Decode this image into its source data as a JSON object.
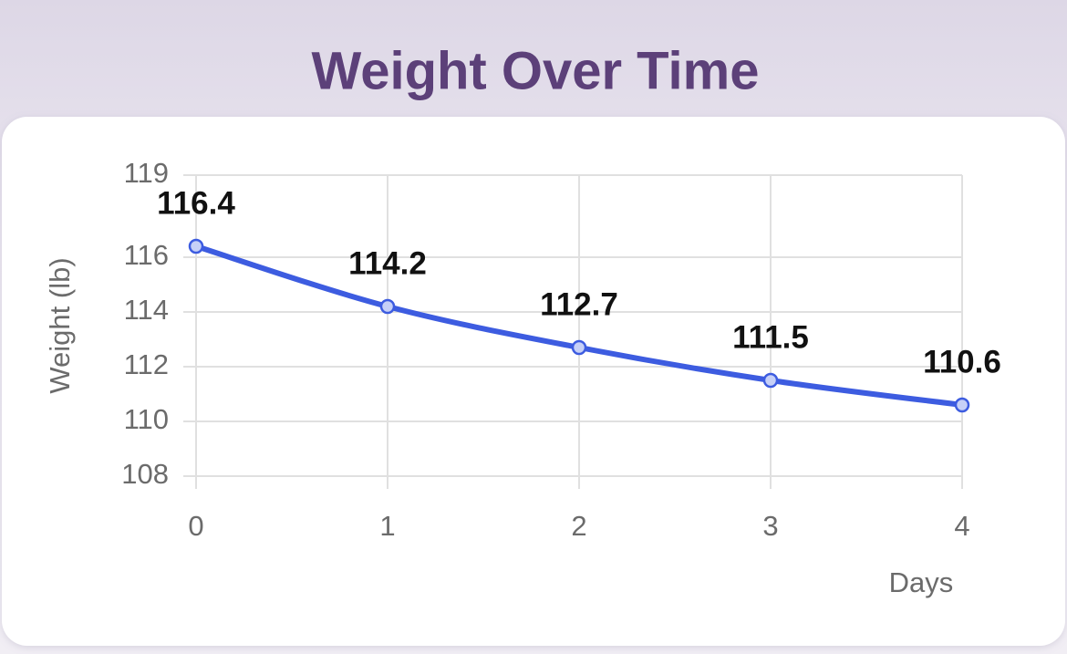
{
  "chart_data": {
    "type": "line",
    "title": "Weight Over Time",
    "x_label": "Days",
    "y_label": "Weight (lb)",
    "x": [
      0,
      1,
      2,
      3,
      4
    ],
    "values": [
      116.4,
      114.2,
      112.7,
      111.5,
      110.6
    ],
    "color": "#3d5ce0",
    "xlim": [
      0,
      4
    ],
    "xticks": [
      0,
      1,
      2,
      3,
      4
    ],
    "ylim": [
      108,
      119
    ],
    "yticks": [
      108,
      110,
      112,
      114,
      116,
      119
    ],
    "grid": true,
    "data_labels": true,
    "smooth": true
  }
}
